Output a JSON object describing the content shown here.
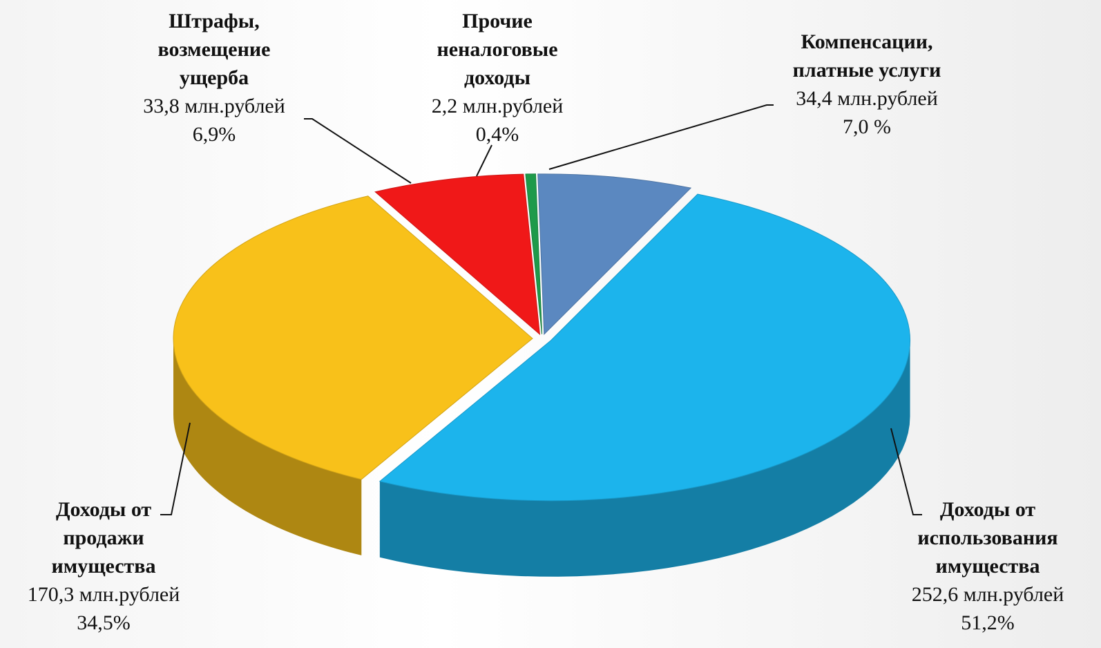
{
  "chart_data": {
    "type": "pie3d",
    "categories": [
      "Компенсации, платные услуги",
      "Доходы от использования имущества",
      "Доходы от продажи имущества",
      "Штрафы, возмещение ущерба",
      "Прочие неналоговые доходы"
    ],
    "amounts": [
      34.4,
      252.6,
      170.3,
      33.8,
      2.2
    ],
    "amount_labels": [
      "34,4 млн.рублей",
      "252,6 млн.рублей",
      "170,3 млн.рублей",
      "33,8 млн.рублей",
      "2,2 млн.рублей"
    ],
    "values": [
      7.0,
      51.2,
      34.5,
      6.9,
      0.4
    ],
    "value_labels": [
      "7,0 %",
      "51,2%",
      "34,5%",
      "6,9%",
      "0,4%"
    ],
    "colors": [
      "#5b88c0",
      "#1cb4ec",
      "#f8c11a",
      "#f01818",
      "#1e9a4a"
    ]
  }
}
